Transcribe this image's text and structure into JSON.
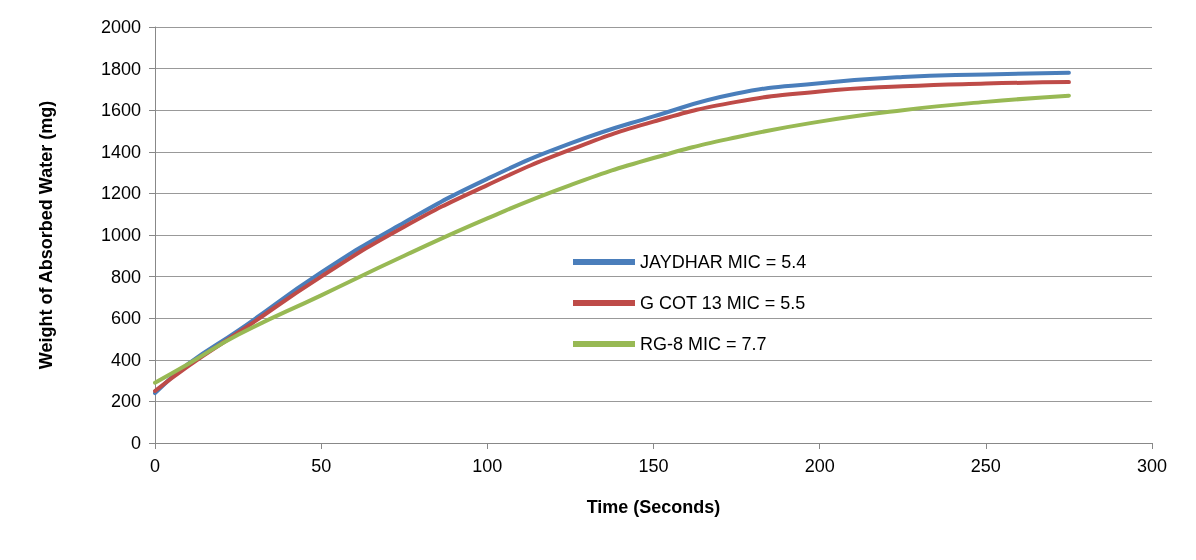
{
  "chart_data": {
    "type": "line",
    "xlabel": "Time (Seconds)",
    "ylabel": "Weight of Absorbed Water (mg)",
    "x": [
      0,
      10,
      25,
      50,
      75,
      100,
      125,
      150,
      175,
      200,
      225,
      250,
      275
    ],
    "series": [
      {
        "name": "JAYDHAR MIC = 5.4",
        "color": "#4a7ebb",
        "values": [
          240,
          380,
          540,
          820,
          1060,
          1270,
          1440,
          1570,
          1680,
          1730,
          1760,
          1772,
          1780
        ]
      },
      {
        "name": "G COT 13 MIC = 5.5",
        "color": "#be4b48",
        "values": [
          250,
          370,
          530,
          800,
          1040,
          1240,
          1410,
          1545,
          1640,
          1690,
          1715,
          1728,
          1735
        ]
      },
      {
        "name": "RG-8 MIC = 7.7",
        "color": "#98b954",
        "values": [
          290,
          380,
          520,
          710,
          900,
          1080,
          1240,
          1370,
          1470,
          1545,
          1600,
          1640,
          1670
        ]
      }
    ],
    "xlim": [
      0,
      300
    ],
    "xticks": [
      0,
      50,
      100,
      150,
      200,
      250,
      300
    ],
    "ylim": [
      0,
      2000
    ],
    "yticks": [
      0,
      200,
      400,
      600,
      800,
      1000,
      1200,
      1400,
      1600,
      1800,
      2000
    ],
    "grid": "y",
    "legend": "right",
    "marker": "none",
    "line_style": "solid"
  }
}
